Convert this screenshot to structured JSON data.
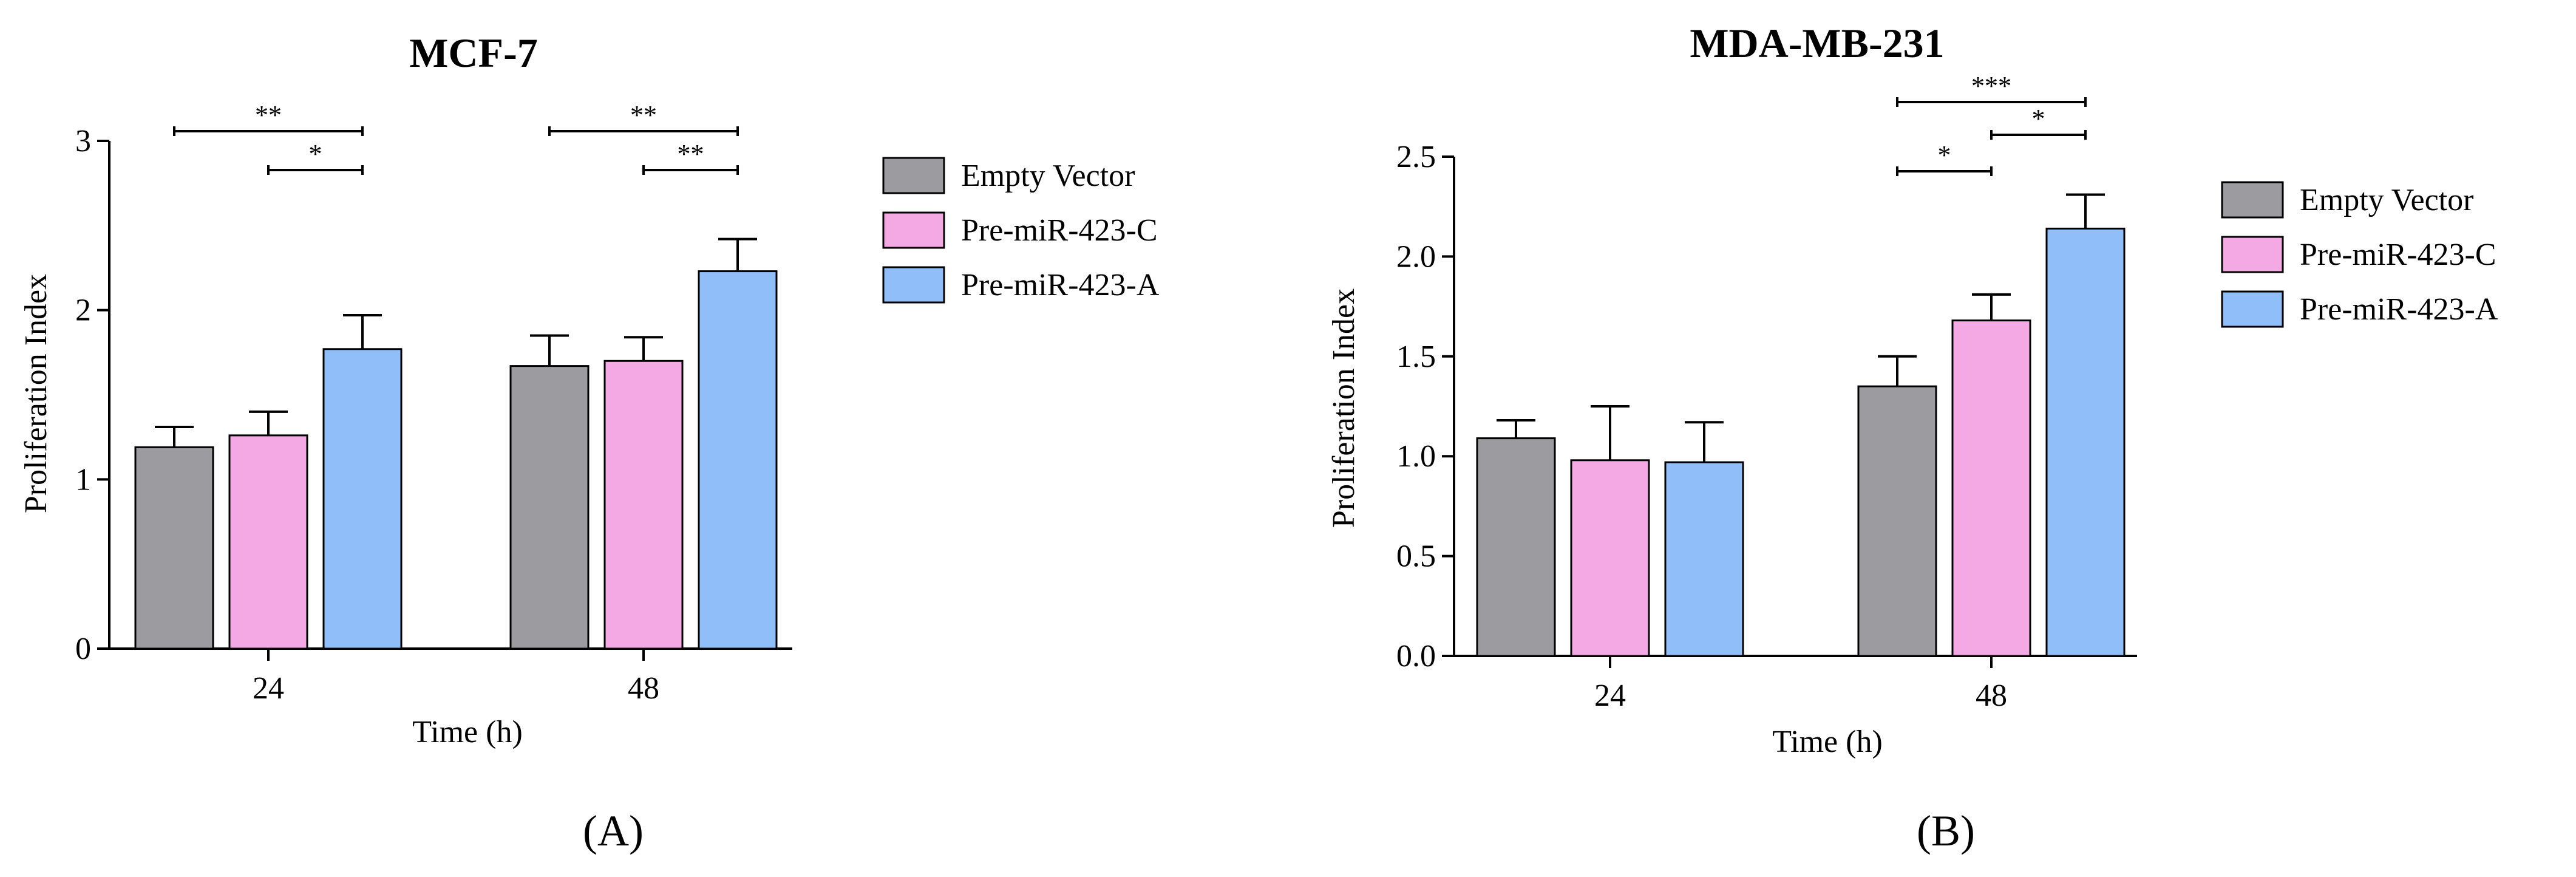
{
  "chart_data": [
    {
      "type": "bar",
      "panel_label": "(A)",
      "title": "MCF-7",
      "xlabel": "Time (h)",
      "ylabel": "Proliferation Index",
      "categories": [
        "24",
        "48"
      ],
      "ylim": [
        0,
        3
      ],
      "yticks": [
        0,
        1,
        2,
        3
      ],
      "ytick_labels": [
        "0",
        "1",
        "2",
        "3"
      ],
      "legend_position": "right",
      "series": [
        {
          "name": "Empty Vector",
          "color": "#9b9ba0",
          "values": [
            1.19,
            1.67
          ],
          "errors": [
            0.12,
            0.18
          ]
        },
        {
          "name": "Pre-miR-423-C",
          "color": "#f4a8e4",
          "values": [
            1.26,
            1.7
          ],
          "errors": [
            0.14,
            0.14
          ]
        },
        {
          "name": "Pre-miR-423-A",
          "color": "#8fbef9",
          "values": [
            1.77,
            2.23
          ],
          "errors": [
            0.2,
            0.19
          ]
        }
      ],
      "significance": [
        {
          "label": "**",
          "category": 0,
          "from_series": 0,
          "to_series": 2,
          "level": 3.0
        },
        {
          "label": "*",
          "category": 0,
          "from_series": 1,
          "to_series": 2,
          "level": 2.82
        },
        {
          "label": "**",
          "category": 1,
          "from_series": 0,
          "to_series": 2,
          "level": 3.0
        },
        {
          "label": "**",
          "category": 1,
          "from_series": 1,
          "to_series": 2,
          "level": 2.82
        }
      ]
    },
    {
      "type": "bar",
      "panel_label": "(B)",
      "title": "MDA-MB-231",
      "xlabel": "Time (h)",
      "ylabel": "Proliferation Index",
      "categories": [
        "24",
        "48"
      ],
      "ylim": [
        0,
        2.5
      ],
      "yticks": [
        0,
        0.5,
        1.0,
        1.5,
        2.0,
        2.5
      ],
      "ytick_labels": [
        "0.0",
        "0.5",
        "1.0",
        "1.5",
        "2.0",
        "2.5"
      ],
      "legend_position": "right",
      "series": [
        {
          "name": "Empty Vector",
          "color": "#9b9ba0",
          "values": [
            1.09,
            1.35
          ],
          "errors": [
            0.09,
            0.15
          ]
        },
        {
          "name": "Pre-miR-423-C",
          "color": "#f4a8e4",
          "values": [
            0.98,
            1.68
          ],
          "errors": [
            0.27,
            0.13
          ]
        },
        {
          "name": "Pre-miR-423-A",
          "color": "#8fbef9",
          "values": [
            0.97,
            2.14
          ],
          "errors": [
            0.2,
            0.17
          ]
        }
      ],
      "significance": [
        {
          "label": "***",
          "category": 1,
          "from_series": 0,
          "to_series": 2,
          "level": 2.77
        },
        {
          "label": "*",
          "category": 1,
          "from_series": 1,
          "to_series": 2,
          "level": 2.6
        },
        {
          "label": "*",
          "category": 1,
          "from_series": 0,
          "to_series": 1,
          "level": 2.42
        }
      ]
    }
  ]
}
